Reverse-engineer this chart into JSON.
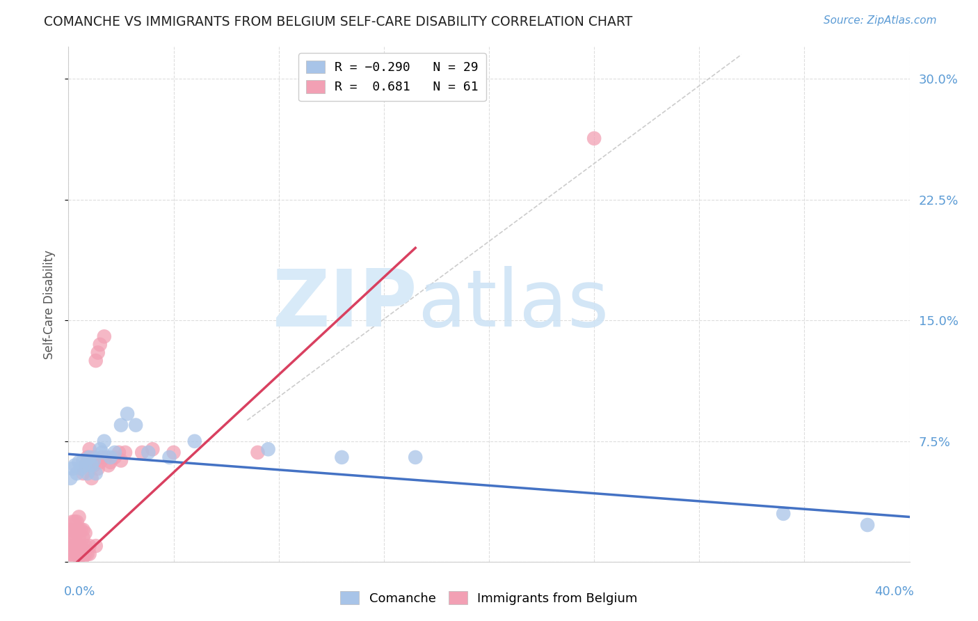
{
  "title": "COMANCHE VS IMMIGRANTS FROM BELGIUM SELF-CARE DISABILITY CORRELATION CHART",
  "source": "Source: ZipAtlas.com",
  "ylabel": "Self-Care Disability",
  "ytick_values": [
    0.0,
    0.075,
    0.15,
    0.225,
    0.3
  ],
  "ytick_labels": [
    "",
    "7.5%",
    "15.0%",
    "22.5%",
    "30.0%"
  ],
  "xlim": [
    0.0,
    0.4
  ],
  "ylim": [
    0.0,
    0.32
  ],
  "blue_color": "#a8c4e8",
  "pink_color": "#f2a0b4",
  "blue_line_color": "#4472c4",
  "pink_line_color": "#d94060",
  "background_color": "#ffffff",
  "comanche_x": [
    0.001,
    0.002,
    0.003,
    0.004,
    0.005,
    0.006,
    0.007,
    0.008,
    0.009,
    0.01,
    0.011,
    0.012,
    0.013,
    0.015,
    0.016,
    0.017,
    0.02,
    0.022,
    0.025,
    0.028,
    0.032,
    0.038,
    0.048,
    0.06,
    0.095,
    0.13,
    0.165,
    0.34,
    0.38
  ],
  "comanche_y": [
    0.052,
    0.058,
    0.06,
    0.055,
    0.062,
    0.058,
    0.063,
    0.06,
    0.055,
    0.065,
    0.06,
    0.063,
    0.055,
    0.07,
    0.068,
    0.075,
    0.065,
    0.068,
    0.085,
    0.092,
    0.085,
    0.068,
    0.065,
    0.075,
    0.07,
    0.065,
    0.065,
    0.03,
    0.023
  ],
  "belgium_x": [
    0.001,
    0.001,
    0.001,
    0.002,
    0.002,
    0.002,
    0.002,
    0.003,
    0.003,
    0.003,
    0.003,
    0.003,
    0.004,
    0.004,
    0.004,
    0.004,
    0.005,
    0.005,
    0.005,
    0.005,
    0.005,
    0.006,
    0.006,
    0.006,
    0.007,
    0.007,
    0.007,
    0.007,
    0.007,
    0.008,
    0.008,
    0.008,
    0.008,
    0.009,
    0.009,
    0.01,
    0.01,
    0.01,
    0.011,
    0.012,
    0.012,
    0.013,
    0.013,
    0.014,
    0.014,
    0.015,
    0.015,
    0.016,
    0.017,
    0.018,
    0.019,
    0.02,
    0.022,
    0.024,
    0.025,
    0.027,
    0.035,
    0.04,
    0.05,
    0.09,
    0.25
  ],
  "belgium_y": [
    0.005,
    0.012,
    0.02,
    0.005,
    0.01,
    0.018,
    0.025,
    0.003,
    0.01,
    0.015,
    0.02,
    0.025,
    0.005,
    0.01,
    0.018,
    0.025,
    0.003,
    0.008,
    0.015,
    0.02,
    0.028,
    0.005,
    0.01,
    0.02,
    0.003,
    0.008,
    0.015,
    0.02,
    0.055,
    0.005,
    0.01,
    0.018,
    0.06,
    0.005,
    0.065,
    0.005,
    0.01,
    0.07,
    0.052,
    0.06,
    0.065,
    0.01,
    0.125,
    0.058,
    0.13,
    0.062,
    0.135,
    0.065,
    0.14,
    0.065,
    0.06,
    0.062,
    0.065,
    0.068,
    0.063,
    0.068,
    0.068,
    0.07,
    0.068,
    0.068,
    0.263
  ],
  "blue_line_x": [
    0.0,
    0.4
  ],
  "blue_line_y": [
    0.067,
    0.028
  ],
  "pink_line_x": [
    0.0,
    0.165
  ],
  "pink_line_y": [
    -0.005,
    0.195
  ],
  "diag_line_x": [
    0.085,
    0.32
  ],
  "diag_line_y": [
    0.088,
    0.315
  ]
}
